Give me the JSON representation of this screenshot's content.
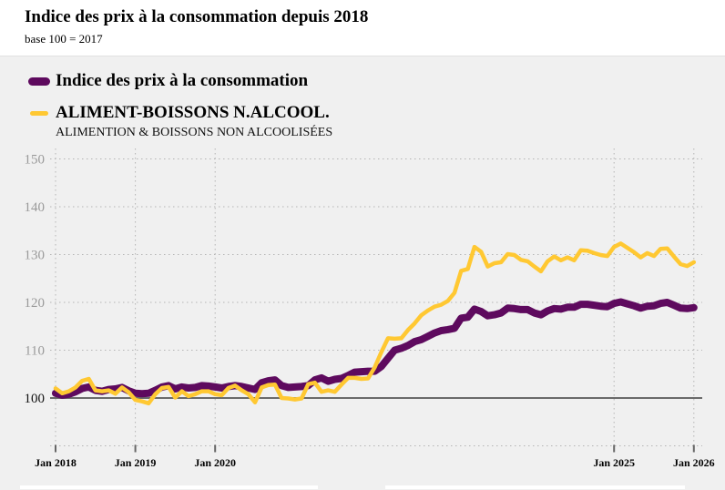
{
  "header": {
    "title": "Indice des prix à la consommation depuis 2018",
    "subtitle": "base 100 = 2017"
  },
  "legend": [
    {
      "label": "Indice des prix à la consommation",
      "color": "#5e0a5e"
    },
    {
      "label": "ALIMENT-BOISSONS N.ALCOOL.",
      "sublabel": "ALIMENTION & BOISSONS NON ALCOOLISÉES",
      "color": "#ffc832"
    }
  ],
  "chart_data": {
    "type": "line",
    "title": "Indice des prix à la consommation depuis 2018",
    "subtitle": "base 100 = 2017",
    "xlabel": "",
    "ylabel": "",
    "x_start": "Jan 2018",
    "x_end": "Jan 2026",
    "x_unit": "month",
    "ylim": [
      90,
      152
    ],
    "yticks": [
      100,
      110,
      120,
      130,
      140,
      150
    ],
    "xticks": [
      {
        "label": "Jan 2018",
        "month_index": 0
      },
      {
        "label": "Jan 2019",
        "month_index": 12
      },
      {
        "label": "Jan 2020",
        "month_index": 24
      },
      {
        "label": "Jan 2025",
        "month_index": 84
      },
      {
        "label": "Jan 2026",
        "month_index": 96
      }
    ],
    "reference_line": 100,
    "grid": true,
    "legend_position": "top-left",
    "series": [
      {
        "name": "Indice des prix à la consommation",
        "color": "#5e0a5e",
        "values": [
          101.0,
          100.6,
          100.8,
          101.3,
          102.0,
          102.3,
          101.6,
          101.4,
          101.8,
          101.9,
          102.2,
          101.5,
          101.0,
          100.9,
          101.0,
          101.6,
          102.3,
          102.6,
          101.9,
          102.3,
          102.1,
          102.2,
          102.6,
          102.5,
          102.3,
          102.1,
          102.4,
          102.6,
          102.4,
          102.1,
          101.8,
          103.2,
          103.6,
          103.8,
          102.6,
          102.2,
          102.3,
          102.4,
          102.6,
          103.8,
          104.2,
          103.5,
          103.9,
          104.1,
          104.7,
          105.4,
          105.5,
          105.6,
          105.6,
          106.6,
          108.3,
          110.0,
          110.4,
          111.0,
          111.8,
          112.2,
          112.9,
          113.6,
          114.1,
          114.3,
          114.6,
          116.7,
          116.9,
          118.6,
          118.1,
          117.2,
          117.4,
          117.8,
          118.8,
          118.7,
          118.5,
          118.5,
          117.8,
          117.4,
          118.2,
          118.7,
          118.6,
          119.0,
          119.0,
          119.6,
          119.6,
          119.4,
          119.2,
          119.1,
          119.8,
          120.1,
          119.7,
          119.3,
          118.8,
          119.2,
          119.3,
          119.8,
          120.0,
          119.4,
          118.8,
          118.7,
          118.9
        ]
      },
      {
        "name": "ALIMENT-BOISSONS N.ALCOOL.",
        "color": "#ffc832",
        "values": [
          102.0,
          101.0,
          101.4,
          102.2,
          103.6,
          104.0,
          101.6,
          101.4,
          101.6,
          100.9,
          102.2,
          101.2,
          99.6,
          99.3,
          98.9,
          100.8,
          102.1,
          102.3,
          100.1,
          101.4,
          100.4,
          100.8,
          101.4,
          101.4,
          100.8,
          100.6,
          102.1,
          102.6,
          101.6,
          100.8,
          99.1,
          102.2,
          102.7,
          102.8,
          100.0,
          99.9,
          99.7,
          99.9,
          102.9,
          103.2,
          101.3,
          101.6,
          101.3,
          102.8,
          104.2,
          104.2,
          104.0,
          104.1,
          106.4,
          109.6,
          112.5,
          112.4,
          112.5,
          114.2,
          115.6,
          117.3,
          118.3,
          119.1,
          119.5,
          120.3,
          122.0,
          126.6,
          127.0,
          131.6,
          130.6,
          127.5,
          128.2,
          128.4,
          130.1,
          129.9,
          128.9,
          128.6,
          127.5,
          126.5,
          128.6,
          129.6,
          128.8,
          129.4,
          128.8,
          130.9,
          130.8,
          130.3,
          129.9,
          129.7,
          131.6,
          132.3,
          131.4,
          130.5,
          129.4,
          130.3,
          129.7,
          131.2,
          131.3,
          129.6,
          128.0,
          127.6,
          128.4
        ]
      }
    ]
  }
}
